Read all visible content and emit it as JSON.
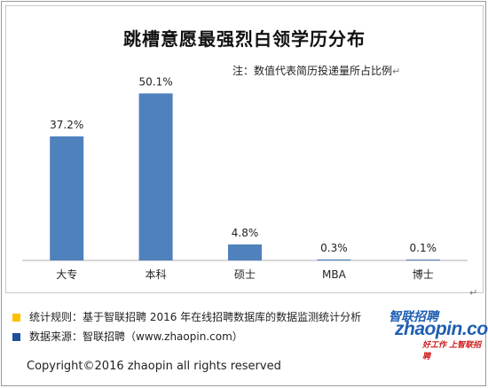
{
  "chart_data": {
    "type": "bar",
    "title": "跳槽意愿最强烈白领学历分布",
    "note": "注：数值代表简历投递量所占比例",
    "categories": [
      "大专",
      "本科",
      "硕士",
      "MBA",
      "博士"
    ],
    "values": [
      37.2,
      50.1,
      4.8,
      0.3,
      0.1
    ],
    "value_labels": [
      "37.2%",
      "50.1%",
      "4.8%",
      "0.3%",
      "0.1%"
    ],
    "ylim": [
      0,
      55
    ],
    "grid": false,
    "bar_color": "#4f81bd"
  },
  "footer": {
    "rule_text": "统计规则：基于智联招聘 2016 年在线招聘数据库的数据监测统计分析",
    "source_text": "数据来源：智联招聘（www.zhaopin.com）",
    "rule_color": "#ffc000",
    "source_color": "#1f4e9c",
    "copyright": "Copyright©2016 zhaopin all rights reserved"
  },
  "logo": {
    "name": "智联招聘",
    "brand": "zhaopin.com",
    "slogan": "好工作 上智联招聘"
  },
  "marks": {
    "paragraph": "↵"
  }
}
